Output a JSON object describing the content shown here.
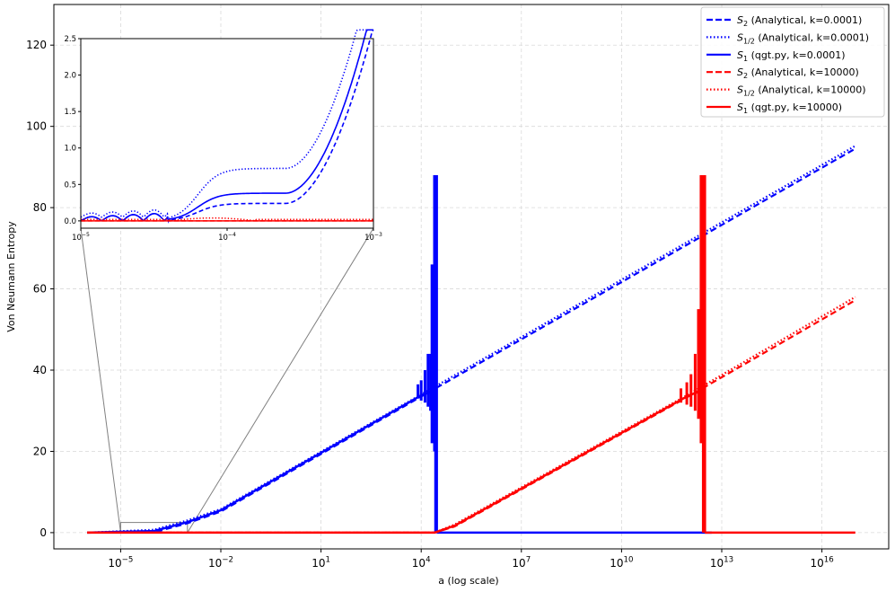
{
  "chart_data": {
    "type": "line",
    "xlabel": "a (log scale)",
    "ylabel": "Von Neumann Entropy",
    "x_scale": "log",
    "xlim": [
      1e-07,
      1e+18
    ],
    "ylim": [
      -4,
      130
    ],
    "x_ticks": [
      {
        "value": 1e-05,
        "base": "10",
        "exp": "−5"
      },
      {
        "value": 0.01,
        "base": "10",
        "exp": "−2"
      },
      {
        "value": 10.0,
        "base": "10",
        "exp": "1"
      },
      {
        "value": 10000.0,
        "base": "10",
        "exp": "4"
      },
      {
        "value": 10000000.0,
        "base": "10",
        "exp": "7"
      },
      {
        "value": 10000000000.0,
        "base": "10",
        "exp": "10"
      },
      {
        "value": 10000000000000.0,
        "base": "10",
        "exp": "13"
      },
      {
        "value": 1e+16,
        "base": "10",
        "exp": "16"
      }
    ],
    "y_ticks": [
      0,
      20,
      40,
      60,
      80,
      100,
      120
    ],
    "grid": true,
    "legend_position": "top-right",
    "series": [
      {
        "name_base": "S",
        "name_sub": "2",
        "name_rest": " (Analytical, k=0.0001)",
        "color": "#0000ff",
        "style": "dashed",
        "points": [
          [
            1e-06,
            0
          ],
          [
            0.0001,
            0.1
          ],
          [
            0.001,
            2.3
          ],
          [
            0.01,
            5.2
          ],
          [
            10000.0,
            33.5
          ],
          [
            1e+17,
            94.5
          ]
        ]
      },
      {
        "name_base": "S",
        "name_sub": "1/2",
        "name_rest": " (Analytical, k=0.0001)",
        "color": "#0000ff",
        "style": "dotted",
        "points": [
          [
            1e-06,
            0
          ],
          [
            0.0001,
            0.7
          ],
          [
            0.001,
            3
          ],
          [
            0.01,
            5.8
          ],
          [
            10000.0,
            34
          ],
          [
            1e+17,
            95.2
          ]
        ]
      },
      {
        "name_base": "S",
        "name_sub": "1",
        "name_rest": " (qgt.py, k=0.0001)",
        "color": "#0000ff",
        "style": "solid",
        "points": [
          [
            1e-06,
            0
          ],
          [
            0.0001,
            0.4
          ],
          [
            0.001,
            2.6
          ],
          [
            0.01,
            5.5
          ],
          [
            10000.0,
            33.8
          ],
          [
            26000.0,
            35
          ]
        ],
        "spikes": [
          {
            "x": 8000.0,
            "y0": 33,
            "y1": 36.5
          },
          {
            "x": 10000.0,
            "y0": 32.5,
            "y1": 37.5
          },
          {
            "x": 13000.0,
            "y0": 32,
            "y1": 40
          },
          {
            "x": 16000.0,
            "y0": 31,
            "y1": 44
          },
          {
            "x": 19000.0,
            "y0": 30,
            "y1": 44
          },
          {
            "x": 21000.0,
            "y0": 22,
            "y1": 66
          },
          {
            "x": 23000.0,
            "y0": 24,
            "y1": 60
          },
          {
            "x": 25000.0,
            "y0": 20,
            "y1": 88
          },
          {
            "x": 27000.0,
            "y0": 0,
            "y1": 88
          },
          {
            "x": 29000.0,
            "y0": 0,
            "y1": 88
          }
        ],
        "tail": [
          [
            29000.0,
            0
          ],
          [
            5000000000000.0,
            0
          ]
        ]
      },
      {
        "name_base": "S",
        "name_sub": "2",
        "name_rest": " (Analytical, k=10000)",
        "color": "#ff0000",
        "style": "dashed",
        "points": [
          [
            1e-06,
            0
          ],
          [
            25000.0,
            0
          ],
          [
            100000.0,
            1.5
          ],
          [
            1000000000000.0,
            33.5
          ],
          [
            1e+17,
            57.2
          ]
        ]
      },
      {
        "name_base": "S",
        "name_sub": "1/2",
        "name_rest": " (Analytical, k=10000)",
        "color": "#ff0000",
        "style": "dotted",
        "points": [
          [
            1e-06,
            0
          ],
          [
            25000.0,
            0
          ],
          [
            100000.0,
            2
          ],
          [
            1000000000000.0,
            34
          ],
          [
            1e+17,
            58
          ]
        ]
      },
      {
        "name_base": "S",
        "name_sub": "1",
        "name_rest": " (qgt.py, k=10000)",
        "color": "#ff0000",
        "style": "solid",
        "points": [
          [
            1e-06,
            0
          ],
          [
            25000.0,
            0
          ],
          [
            100000.0,
            1.7
          ],
          [
            1000000000000.0,
            33.7
          ],
          [
            2600000000000.0,
            35
          ]
        ],
        "spikes": [
          {
            "x": 600000000000.0,
            "y0": 32,
            "y1": 35.5
          },
          {
            "x": 900000000000.0,
            "y0": 31.5,
            "y1": 37
          },
          {
            "x": 1200000000000.0,
            "y0": 31,
            "y1": 39
          },
          {
            "x": 1600000000000.0,
            "y0": 30,
            "y1": 44
          },
          {
            "x": 2000000000000.0,
            "y0": 28,
            "y1": 55
          },
          {
            "x": 2400000000000.0,
            "y0": 22,
            "y1": 88
          },
          {
            "x": 2800000000000.0,
            "y0": 0,
            "y1": 88
          },
          {
            "x": 3100000000000.0,
            "y0": 0,
            "y1": 88
          }
        ],
        "tail": [
          [
            3100000000000.0,
            0
          ],
          [
            1e+17,
            0
          ]
        ]
      }
    ],
    "inset": {
      "xlim": [
        1e-05,
        0.001
      ],
      "ylim": [
        -0.1,
        2.5
      ],
      "x_ticks": [
        {
          "value": 1e-05,
          "base": "10",
          "exp": "−5"
        },
        {
          "value": 0.0001,
          "base": "10",
          "exp": "−4"
        },
        {
          "value": 0.001,
          "base": "10",
          "exp": "−3"
        }
      ],
      "y_ticks": [
        "0.0",
        "0.5",
        "1.0",
        "1.5",
        "2.0",
        "2.5"
      ],
      "zoom_box": {
        "x": [
          1e-05,
          0.001
        ],
        "y": [
          0,
          2.5
        ]
      }
    }
  }
}
